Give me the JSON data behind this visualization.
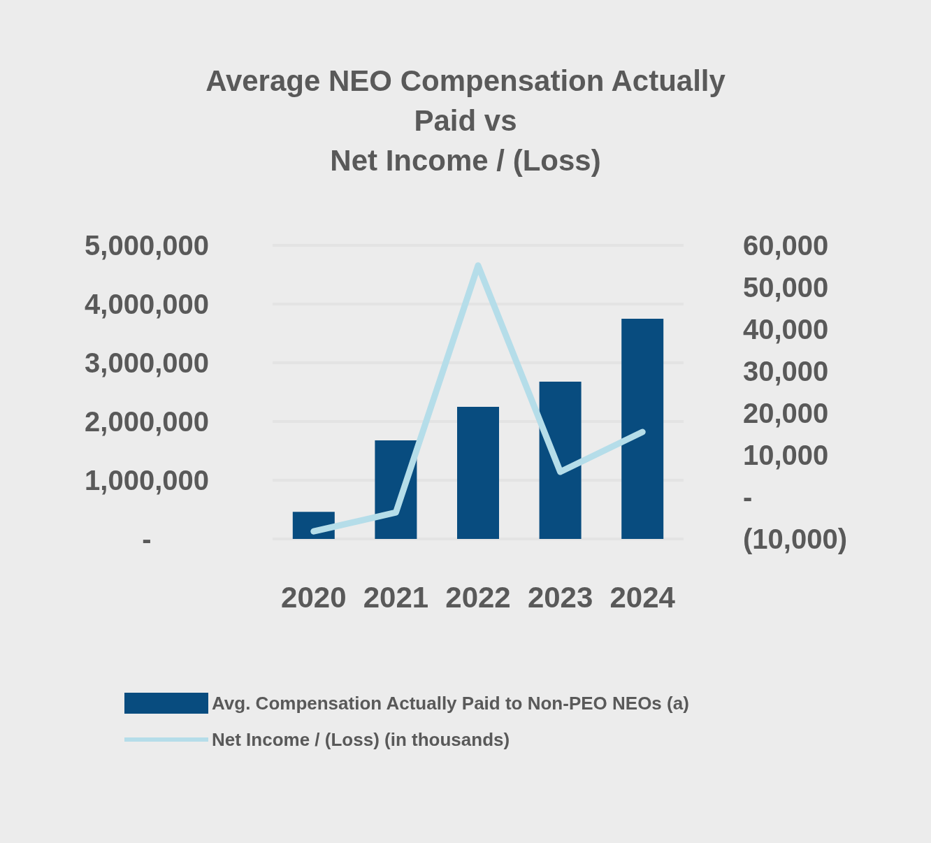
{
  "chart_data": {
    "type": "bar",
    "title": "Average NEO Compensation Actually\nPaid vs\nNet Income / (Loss)",
    "categories": [
      "2020",
      "2021",
      "2022",
      "2023",
      "2024"
    ],
    "series": [
      {
        "name": "Avg. Compensation Actually Paid to Non-PEO NEOs (a)",
        "color": "#084c7f",
        "values": [
          460000,
          1680000,
          2250000,
          2680000,
          3750000
        ]
      },
      {
        "name": "Net Income / (Loss) (in thousands)",
        "type": "line",
        "axis": "y2",
        "color": "#b5dde9",
        "values": [
          -8200,
          -3700,
          55200,
          6000,
          15500
        ]
      }
    ],
    "ylim": [
      0,
      5000000
    ],
    "yticks": [
      {
        "value": 0,
        "label": "-"
      },
      {
        "value": 1000000,
        "label": "1,000,000"
      },
      {
        "value": 2000000,
        "label": "2,000,000"
      },
      {
        "value": 3000000,
        "label": "3,000,000"
      },
      {
        "value": 4000000,
        "label": "4,000,000"
      },
      {
        "value": 5000000,
        "label": "5,000,000"
      }
    ],
    "y2lim": [
      -10000,
      60000
    ],
    "y2ticks": [
      {
        "value": -10000,
        "label": "(10,000)"
      },
      {
        "value": 0,
        "label": "-"
      },
      {
        "value": 10000,
        "label": "10,000"
      },
      {
        "value": 20000,
        "label": "20,000"
      },
      {
        "value": 30000,
        "label": "30,000"
      },
      {
        "value": 40000,
        "label": "40,000"
      },
      {
        "value": 50000,
        "label": "50,000"
      },
      {
        "value": 60000,
        "label": "60,000"
      }
    ],
    "grid": "y",
    "legend": "bottom",
    "marker": "none",
    "line_style": "solid"
  }
}
